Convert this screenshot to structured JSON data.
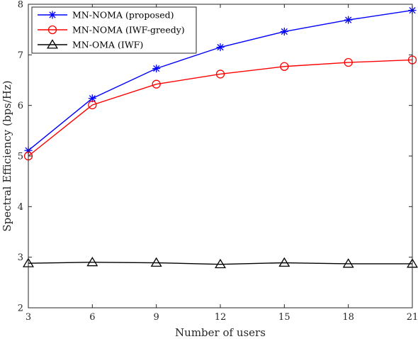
{
  "chart_data": {
    "type": "line",
    "xlabel": "Number of users",
    "ylabel": "Spectral Efficiency (bps/Hz)",
    "xlim": [
      3,
      21
    ],
    "ylim": [
      2,
      8
    ],
    "x_ticks": [
      3,
      6,
      9,
      12,
      15,
      18,
      21
    ],
    "y_ticks": [
      2,
      3,
      4,
      5,
      6,
      7,
      8
    ],
    "grid": false,
    "legend_position": "top-left",
    "x": [
      3,
      6,
      9,
      12,
      15,
      18,
      21
    ],
    "series": [
      {
        "name": "MN-NOMA (proposed)",
        "color": "#0000ff",
        "marker": "asterisk",
        "values": [
          5.11,
          6.14,
          6.73,
          7.15,
          7.46,
          7.69,
          7.88
        ]
      },
      {
        "name": "MN-NOMA (IWF-greedy)",
        "color": "#ff0000",
        "marker": "circle",
        "values": [
          5.0,
          6.01,
          6.42,
          6.62,
          6.77,
          6.85,
          6.9
        ]
      },
      {
        "name": "MN-OMA (IWF)",
        "color": "#000000",
        "marker": "triangle",
        "values": [
          2.88,
          2.9,
          2.89,
          2.86,
          2.89,
          2.87,
          2.87
        ]
      }
    ]
  }
}
